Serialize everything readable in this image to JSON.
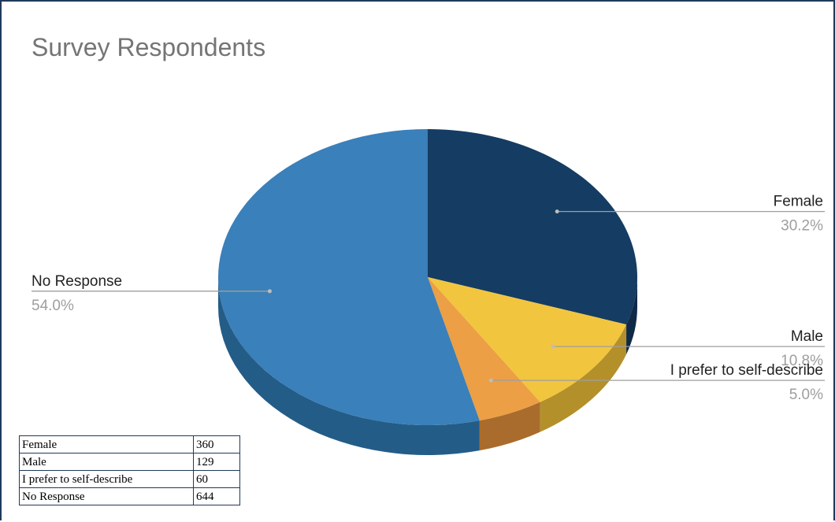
{
  "chart_data": {
    "type": "pie",
    "title": "Survey Respondents",
    "slices": [
      {
        "label": "Female",
        "value": 360,
        "percent_label": "30.2%",
        "color": "#153c63",
        "side_color": "#0f2a47"
      },
      {
        "label": "Male",
        "value": 129,
        "percent_label": "10.8%",
        "color": "#f2c53f",
        "side_color": "#b4902a"
      },
      {
        "label": "I prefer to self-describe",
        "value": 60,
        "percent_label": "5.0%",
        "color": "#ec9f45",
        "side_color": "#a96c2c"
      },
      {
        "label": "No Response",
        "value": 644,
        "percent_label": "54.0%",
        "color": "#3a80ba",
        "side_color": "#245c88"
      }
    ],
    "style": "3d",
    "legend": "none"
  },
  "table": {
    "rows": [
      {
        "category": "Female",
        "count": "360"
      },
      {
        "category": "Male",
        "count": "129"
      },
      {
        "category": "I prefer to self-describe",
        "count": "60"
      },
      {
        "category": "No Response",
        "count": "644"
      }
    ]
  }
}
